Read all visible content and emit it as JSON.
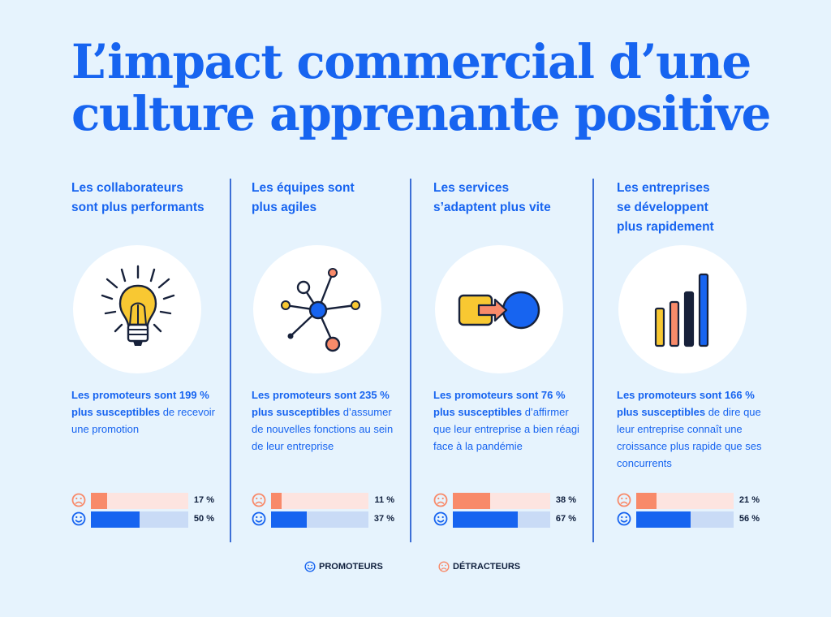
{
  "title": {
    "line1": "L’impact commercial d’une",
    "line2": "culture apprenante positive"
  },
  "colors": {
    "accent": "#1764f0",
    "promoteur": "#1764f0",
    "promoteur_track": "#c9dbf6",
    "detracteur": "#f88a6a",
    "detracteur_track": "#fde4e0"
  },
  "columns": [
    {
      "heading": "Les collaborateurs\nsont plus performants",
      "icon": "lightbulb-icon",
      "stat_bold": "Les promoteurs sont 199 % plus susceptibles",
      "stat_rest": " de recevoir une promotion",
      "detracteur_value": 17,
      "detracteur_label": "17 %",
      "promoteur_value": 50,
      "promoteur_label": "50 %"
    },
    {
      "heading": "Les équipes sont\nplus agiles",
      "icon": "network-icon",
      "stat_bold": "Les promoteurs sont 235 % plus susceptibles",
      "stat_rest": " d’assumer de nouvelles fonctions au sein de leur entreprise",
      "detracteur_value": 11,
      "detracteur_label": "11 %",
      "promoteur_value": 37,
      "promoteur_label": "37 %"
    },
    {
      "heading": "Les services\ns’adaptent plus vite",
      "icon": "transform-arrow-icon",
      "stat_bold": "Les promoteurs sont 76 % plus susceptibles",
      "stat_rest": " d’affirmer que leur entreprise a bien réagi face à la pandémie",
      "detracteur_value": 38,
      "detracteur_label": "38 %",
      "promoteur_value": 67,
      "promoteur_label": "67 %"
    },
    {
      "heading": "Les entreprises\nse développent\nplus rapidement",
      "icon": "growth-bars-icon",
      "stat_bold": "Les promoteurs sont 166 % plus susceptibles",
      "stat_rest": " de dire que leur entreprise connaît une croissance plus rapide que ses concurrents",
      "detracteur_value": 21,
      "detracteur_label": "21 %",
      "promoteur_value": 56,
      "promoteur_label": "56 %"
    }
  ],
  "legend": {
    "promoteurs": "PROMOTEURS",
    "detracteurs": "DÉTRACTEURS"
  }
}
